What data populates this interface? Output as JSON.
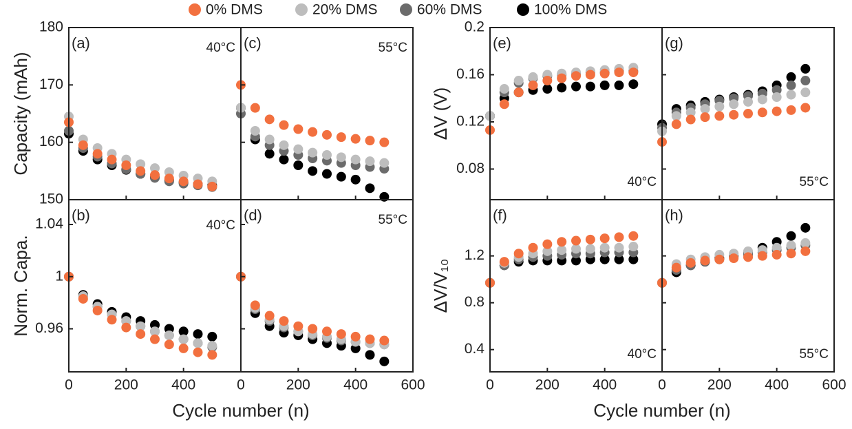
{
  "legend": [
    {
      "name": "0% DMS",
      "color": "#f2703f"
    },
    {
      "name": "20% DMS",
      "color": "#bdbdbd"
    },
    {
      "name": "60% DMS",
      "color": "#6b6b6b"
    },
    {
      "name": "100% DMS",
      "color": "#000000"
    }
  ],
  "xlabels": [
    "Cycle number (n)",
    "Cycle number (n)"
  ],
  "chart_data": [
    {
      "type": "scatter",
      "label": "(a)",
      "annotation": "40°C",
      "ylabel": "Capacity (mAh)",
      "xtick_labels": false,
      "ytick_labels": true,
      "x": [
        0,
        50,
        100,
        150,
        200,
        250,
        300,
        350,
        400,
        450,
        500
      ],
      "xlim": [
        0,
        600
      ],
      "xticks": [
        0,
        200,
        400
      ],
      "ylim": [
        150,
        180
      ],
      "yticks": [
        150,
        160,
        170,
        180
      ],
      "series": [
        {
          "name": "0% DMS",
          "color": "#f2703f",
          "values": [
            163.5,
            159.5,
            158,
            157,
            156,
            155,
            154.3,
            153.7,
            153.2,
            152.7,
            152.3
          ]
        },
        {
          "name": "20% DMS",
          "color": "#bdbdbd",
          "values": [
            164.5,
            160.5,
            159,
            158,
            157,
            156.2,
            155.5,
            154.8,
            154.2,
            153.7,
            153.2
          ]
        },
        {
          "name": "60% DMS",
          "color": "#6b6b6b",
          "values": [
            162,
            159,
            157.5,
            156.3,
            155.3,
            154.5,
            153.8,
            153.2,
            152.8,
            152.5,
            152.2
          ]
        },
        {
          "name": "100% DMS",
          "color": "#000000",
          "values": [
            161.5,
            158.5,
            157,
            156,
            155.2,
            154.5,
            153.9,
            153.4,
            153,
            152.7,
            152.5
          ]
        }
      ]
    },
    {
      "type": "scatter",
      "label": "(c)",
      "annotation": "55°C",
      "xtick_labels": false,
      "ytick_labels": false,
      "x": [
        0,
        50,
        100,
        150,
        200,
        250,
        300,
        350,
        400,
        450,
        500
      ],
      "xlim": [
        0,
        600
      ],
      "xticks": [
        0,
        200,
        400
      ],
      "ylim": [
        150,
        180
      ],
      "yticks": [
        150,
        160,
        170,
        180
      ],
      "series": [
        {
          "name": "0% DMS",
          "color": "#f2703f",
          "values": [
            170,
            166,
            164,
            163,
            162.3,
            161.8,
            161.3,
            160.9,
            160.6,
            160.3,
            160
          ]
        },
        {
          "name": "20% DMS",
          "color": "#bdbdbd",
          "values": [
            166,
            162,
            160.5,
            159.5,
            158.8,
            158.2,
            157.8,
            157.4,
            157,
            156.7,
            156.4
          ]
        },
        {
          "name": "60% DMS",
          "color": "#6b6b6b",
          "values": [
            165,
            161,
            159.5,
            158.5,
            157.8,
            157.2,
            156.8,
            156.4,
            156,
            155.7,
            155.4
          ]
        },
        {
          "name": "100% DMS",
          "color": "#000000",
          "values": [
            166,
            160.5,
            158,
            157,
            156,
            155,
            154.5,
            154,
            153.5,
            152,
            150.5
          ]
        }
      ]
    },
    {
      "type": "scatter",
      "label": "(b)",
      "annotation": "40°C",
      "ylabel": "Norm. Capa.",
      "xtick_labels": true,
      "ytick_labels": true,
      "x": [
        0,
        50,
        100,
        150,
        200,
        250,
        300,
        350,
        400,
        450,
        500
      ],
      "xlim": [
        0,
        600
      ],
      "xticks": [
        0,
        200,
        400
      ],
      "ylim": [
        0.927,
        1.059
      ],
      "yticks": [
        0.96,
        1,
        1.04
      ],
      "series": [
        {
          "name": "0% DMS",
          "color": "#f2703f",
          "values": [
            1,
            0.983,
            0.974,
            0.967,
            0.961,
            0.956,
            0.952,
            0.948,
            0.945,
            0.942,
            0.94
          ]
        },
        {
          "name": "20% DMS",
          "color": "#bdbdbd",
          "values": [
            1,
            0.985,
            0.977,
            0.971,
            0.966,
            0.962,
            0.958,
            0.955,
            0.952,
            0.949,
            0.947
          ]
        },
        {
          "name": "60% DMS",
          "color": "#6b6b6b",
          "values": [
            1,
            0.985,
            0.977,
            0.971,
            0.966,
            0.962,
            0.958,
            0.955,
            0.952,
            0.949,
            0.946
          ]
        },
        {
          "name": "100% DMS",
          "color": "#000000",
          "values": [
            1,
            0.986,
            0.979,
            0.973,
            0.969,
            0.966,
            0.963,
            0.96,
            0.958,
            0.956,
            0.954
          ]
        }
      ]
    },
    {
      "type": "scatter",
      "label": "(d)",
      "annotation": "55°C",
      "xtick_labels": true,
      "ytick_labels": false,
      "x": [
        0,
        50,
        100,
        150,
        200,
        250,
        300,
        350,
        400,
        450,
        500
      ],
      "xlim": [
        0,
        600
      ],
      "xticks": [
        0,
        200,
        400,
        600
      ],
      "ylim": [
        0.927,
        1.059
      ],
      "yticks": [
        0.96,
        1,
        1.04
      ],
      "series": [
        {
          "name": "0% DMS",
          "color": "#f2703f",
          "values": [
            1,
            0.978,
            0.97,
            0.966,
            0.962,
            0.96,
            0.958,
            0.956,
            0.954,
            0.952,
            0.951
          ]
        },
        {
          "name": "20% DMS",
          "color": "#bdbdbd",
          "values": [
            1,
            0.976,
            0.967,
            0.962,
            0.958,
            0.956,
            0.954,
            0.952,
            0.95,
            0.949,
            0.948
          ]
        },
        {
          "name": "60% DMS",
          "color": "#6b6b6b",
          "values": [
            1,
            0.975,
            0.966,
            0.961,
            0.958,
            0.955,
            0.953,
            0.951,
            0.95,
            0.949,
            0.948
          ]
        },
        {
          "name": "100% DMS",
          "color": "#000000",
          "values": [
            1,
            0.972,
            0.962,
            0.957,
            0.955,
            0.952,
            0.949,
            0.947,
            0.945,
            0.94,
            0.935
          ]
        }
      ]
    },
    {
      "type": "scatter",
      "label": "(e)",
      "annotation": "40°C",
      "ylabel": "ΔV (V)",
      "xtick_labels": false,
      "ytick_labels": true,
      "x": [
        0,
        50,
        100,
        150,
        200,
        250,
        300,
        350,
        400,
        450,
        500
      ],
      "xlim": [
        0,
        600
      ],
      "xticks": [
        0,
        200,
        400
      ],
      "ylim": [
        0.054,
        0.2
      ],
      "yticks": [
        0.08,
        0.12,
        0.16,
        0.2
      ],
      "series": [
        {
          "name": "0% DMS",
          "color": "#f2703f",
          "values": [
            0.113,
            0.135,
            0.145,
            0.151,
            0.155,
            0.157,
            0.159,
            0.16,
            0.161,
            0.162,
            0.162
          ]
        },
        {
          "name": "20% DMS",
          "color": "#bdbdbd",
          "values": [
            0.125,
            0.148,
            0.155,
            0.158,
            0.16,
            0.161,
            0.162,
            0.163,
            0.164,
            0.165,
            0.166
          ]
        },
        {
          "name": "60% DMS",
          "color": "#6b6b6b",
          "values": [
            0.125,
            0.145,
            0.153,
            0.157,
            0.159,
            0.16,
            0.161,
            0.162,
            0.162,
            0.163,
            0.163
          ]
        },
        {
          "name": "100% DMS",
          "color": "#000000",
          "values": [
            0.125,
            0.14,
            0.145,
            0.147,
            0.148,
            0.149,
            0.15,
            0.15,
            0.151,
            0.151,
            0.152
          ]
        }
      ]
    },
    {
      "type": "scatter",
      "label": "(g)",
      "annotation": "55°C",
      "xtick_labels": false,
      "ytick_labels": false,
      "x": [
        0,
        50,
        100,
        150,
        200,
        250,
        300,
        350,
        400,
        450,
        500
      ],
      "xlim": [
        0,
        600
      ],
      "xticks": [
        0,
        200,
        400
      ],
      "ylim": [
        0.054,
        0.2
      ],
      "yticks": [
        0.08,
        0.12,
        0.16,
        0.2
      ],
      "series": [
        {
          "name": "0% DMS",
          "color": "#f2703f",
          "values": [
            0.103,
            0.118,
            0.122,
            0.124,
            0.125,
            0.126,
            0.127,
            0.128,
            0.129,
            0.13,
            0.132
          ]
        },
        {
          "name": "20% DMS",
          "color": "#bdbdbd",
          "values": [
            0.112,
            0.125,
            0.128,
            0.131,
            0.133,
            0.135,
            0.137,
            0.139,
            0.141,
            0.143,
            0.145
          ]
        },
        {
          "name": "60% DMS",
          "color": "#6b6b6b",
          "values": [
            0.115,
            0.128,
            0.132,
            0.135,
            0.138,
            0.14,
            0.142,
            0.144,
            0.147,
            0.151,
            0.155
          ]
        },
        {
          "name": "100% DMS",
          "color": "#000000",
          "values": [
            0.118,
            0.131,
            0.134,
            0.137,
            0.139,
            0.141,
            0.143,
            0.146,
            0.151,
            0.158,
            0.165
          ]
        }
      ]
    },
    {
      "type": "scatter",
      "label": "(f)",
      "annotation": "40°C",
      "ylabel": "ΔV/V₁₀",
      "xtick_labels": true,
      "ytick_labels": true,
      "x": [
        0,
        50,
        100,
        150,
        200,
        250,
        300,
        350,
        400,
        450,
        500
      ],
      "xlim": [
        0,
        600
      ],
      "xticks": [
        0,
        200,
        400
      ],
      "ylim": [
        0.21,
        1.68
      ],
      "yticks": [
        0.4,
        0.8,
        1.2
      ],
      "series": [
        {
          "name": "0% DMS",
          "color": "#f2703f",
          "values": [
            0.97,
            1.15,
            1.22,
            1.27,
            1.3,
            1.32,
            1.33,
            1.34,
            1.35,
            1.36,
            1.37
          ]
        },
        {
          "name": "20% DMS",
          "color": "#bdbdbd",
          "values": [
            0.97,
            1.14,
            1.19,
            1.22,
            1.24,
            1.25,
            1.26,
            1.26,
            1.27,
            1.27,
            1.28
          ]
        },
        {
          "name": "60% DMS",
          "color": "#6b6b6b",
          "values": [
            0.97,
            1.12,
            1.17,
            1.19,
            1.2,
            1.21,
            1.22,
            1.22,
            1.23,
            1.23,
            1.23
          ]
        },
        {
          "name": "100% DMS",
          "color": "#000000",
          "values": [
            0.97,
            1.12,
            1.15,
            1.16,
            1.16,
            1.16,
            1.16,
            1.17,
            1.17,
            1.17,
            1.17
          ]
        }
      ]
    },
    {
      "type": "scatter",
      "label": "(h)",
      "annotation": "55°C",
      "xtick_labels": true,
      "ytick_labels": false,
      "x": [
        0,
        50,
        100,
        150,
        200,
        250,
        300,
        350,
        400,
        450,
        500
      ],
      "xlim": [
        0,
        600
      ],
      "xticks": [
        0,
        200,
        400,
        600
      ],
      "ylim": [
        0.21,
        1.68
      ],
      "yticks": [
        0.4,
        0.8,
        1.2
      ],
      "series": [
        {
          "name": "0% DMS",
          "color": "#f2703f",
          "values": [
            0.97,
            1.1,
            1.14,
            1.16,
            1.17,
            1.18,
            1.19,
            1.2,
            1.21,
            1.22,
            1.24
          ]
        },
        {
          "name": "20% DMS",
          "color": "#bdbdbd",
          "values": [
            0.97,
            1.13,
            1.17,
            1.19,
            1.21,
            1.22,
            1.24,
            1.25,
            1.27,
            1.29,
            1.31
          ]
        },
        {
          "name": "60% DMS",
          "color": "#6b6b6b",
          "values": [
            0.97,
            1.08,
            1.12,
            1.15,
            1.17,
            1.19,
            1.21,
            1.23,
            1.25,
            1.27,
            1.29
          ]
        },
        {
          "name": "100% DMS",
          "color": "#000000",
          "values": [
            0.97,
            1.06,
            1.12,
            1.15,
            1.18,
            1.2,
            1.23,
            1.27,
            1.32,
            1.37,
            1.44
          ]
        }
      ]
    }
  ]
}
